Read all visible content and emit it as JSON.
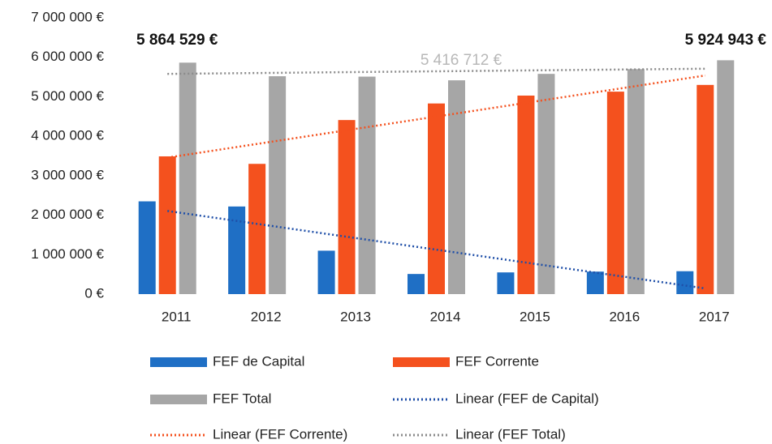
{
  "chart_data": {
    "type": "bar",
    "categories": [
      "2011",
      "2012",
      "2013",
      "2014",
      "2015",
      "2016",
      "2017"
    ],
    "series": [
      {
        "name": "FEF de Capital",
        "color": "#1f6fc5",
        "values": [
          2350000,
          2220000,
          1100000,
          510000,
          550000,
          570000,
          580000
        ],
        "trendline": {
          "name": "Linear (FEF de Capital)",
          "color": "#1f4fa8"
        }
      },
      {
        "name": "FEF Corrente",
        "color": "#f4511e",
        "values": [
          3490000,
          3300000,
          4410000,
          4830000,
          5030000,
          5130000,
          5300000
        ],
        "trendline": {
          "name": "Linear (FEF Corrente)",
          "color": "#f4511e"
        }
      },
      {
        "name": "FEF Total",
        "color": "#a6a6a6",
        "values": [
          5864529,
          5520000,
          5510000,
          5416712,
          5580000,
          5700000,
          5924943
        ],
        "trendline": {
          "name": "Linear (FEF Total)",
          "color": "#8c8c8c"
        }
      }
    ],
    "annotations": [
      "5 864 529 €",
      "5 416 712 €",
      "5 924 943 €"
    ],
    "ylim": [
      0,
      7000000
    ],
    "yticks": [
      {
        "value": 0,
        "label": "0 €"
      },
      {
        "value": 1000000,
        "label": "1 000 000 €"
      },
      {
        "value": 2000000,
        "label": "2 000 000 €"
      },
      {
        "value": 3000000,
        "label": "3 000 000 €"
      },
      {
        "value": 4000000,
        "label": "4 000 000 €"
      },
      {
        "value": 5000000,
        "label": "5 000 000 €"
      },
      {
        "value": 6000000,
        "label": "6 000 000 €"
      },
      {
        "value": 7000000,
        "label": "7 000 000 €"
      }
    ],
    "grid": false
  }
}
